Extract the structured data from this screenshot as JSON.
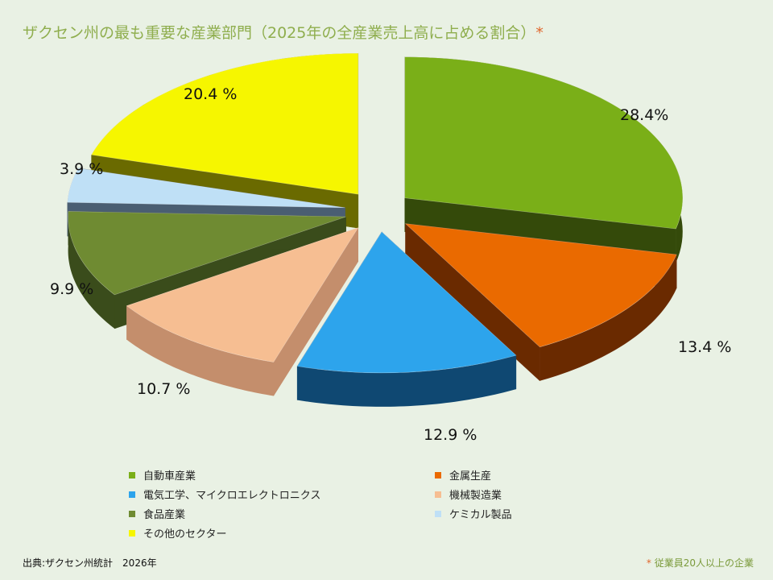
{
  "title": "ザクセン州の最も重要な産業部門（2025年の全産業売上高に占める割合）",
  "title_mark": "*",
  "source": "出典:ザクセン州統計　2026年",
  "footnote_mark": "*",
  "footnote": "従業員20人以上の企業",
  "chart_data": {
    "type": "pie",
    "title": "ザクセン州の最も重要な産業部門（2025年の全産業売上高に占める割合）",
    "legend_placement": "bottom",
    "three_d": true,
    "exploded": true,
    "slices": [
      {
        "name": "自動車産業",
        "value": 28.4,
        "label": "28.4%",
        "color": "#7aaf18",
        "side": "#344a0a"
      },
      {
        "name": "金属生産",
        "value": 13.4,
        "label": "13.4 %",
        "color": "#ea6a00",
        "side": "#6a2a00"
      },
      {
        "name": "電気工学、マイクロエレクトロニクス",
        "value": 12.9,
        "label": "12.9 %",
        "color": "#2da4ec",
        "side": "#0f4872"
      },
      {
        "name": "機械製造業",
        "value": 10.7,
        "label": "10.7 %",
        "color": "#f6be92",
        "side": "#c48e6c"
      },
      {
        "name": "食品産業",
        "value": 9.9,
        "label": "9.9 %",
        "color": "#6f8b32",
        "side": "#3a4c1b"
      },
      {
        "name": "ケミカル製品",
        "value": 3.9,
        "label": "3.9 %",
        "color": "#bfe0f6",
        "side": "#4a5e72"
      },
      {
        "name": "その他のセクター",
        "value": 20.4,
        "label": "20.4 %",
        "color": "#f6f600",
        "side": "#6a6a00"
      }
    ]
  }
}
